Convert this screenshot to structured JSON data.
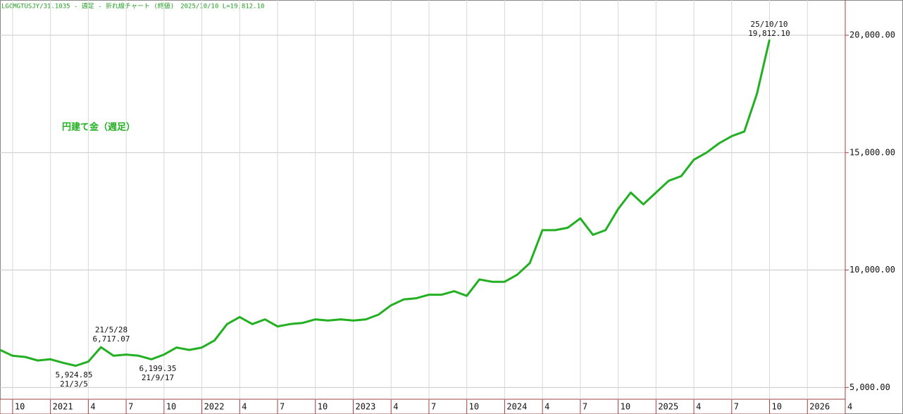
{
  "chart_data": {
    "type": "line",
    "header": "LGCMGTUSJY/31.1035 - 週足 - 折れ線チャート (終値)　2025/10/10 L=19,812.10",
    "legend_label": "円建て金（週足）",
    "color": "#22b022",
    "grid": true,
    "x": [
      "2020-09",
      "2020-10",
      "2020-11",
      "2020-12",
      "2021-01",
      "2021-02",
      "2021-03",
      "2021-04",
      "2021-05",
      "2021-06",
      "2021-07",
      "2021-08",
      "2021-09",
      "2021-10",
      "2021-11",
      "2021-12",
      "2022-01",
      "2022-02",
      "2022-03",
      "2022-04",
      "2022-05",
      "2022-06",
      "2022-07",
      "2022-08",
      "2022-09",
      "2022-10",
      "2022-11",
      "2022-12",
      "2023-01",
      "2023-02",
      "2023-03",
      "2023-04",
      "2023-05",
      "2023-06",
      "2023-07",
      "2023-08",
      "2023-09",
      "2023-10",
      "2023-11",
      "2023-12",
      "2024-01",
      "2024-02",
      "2024-03",
      "2024-04",
      "2024-05",
      "2024-06",
      "2024-07",
      "2024-08",
      "2024-09",
      "2024-10",
      "2024-11",
      "2024-12",
      "2025-01",
      "2025-02",
      "2025-03",
      "2025-04",
      "2025-05",
      "2025-06",
      "2025-07",
      "2025-08",
      "2025-09",
      "2025-10"
    ],
    "values": [
      6600,
      6350,
      6300,
      6150,
      6200,
      6050,
      5924.85,
      6100,
      6717.07,
      6350,
      6400,
      6350,
      6199.35,
      6400,
      6700,
      6600,
      6700,
      7000,
      7700,
      8000,
      7700,
      7900,
      7600,
      7700,
      7750,
      7900,
      7850,
      7900,
      7850,
      7900,
      8100,
      8500,
      8750,
      8800,
      8950,
      8950,
      9100,
      8900,
      9600,
      9500,
      9500,
      9800,
      10300,
      11700,
      11700,
      11800,
      12200,
      11500,
      11700,
      12600,
      13300,
      12800,
      13300,
      13800,
      14000,
      14700,
      15000,
      15400,
      15700,
      15900,
      17500,
      19812.1
    ],
    "xlim": [
      "2020-09",
      "2026-04"
    ],
    "xticks": [
      {
        "value": "2020-10",
        "label": "10"
      },
      {
        "value": "2021-01",
        "label": "2021"
      },
      {
        "value": "2021-04",
        "label": "4"
      },
      {
        "value": "2021-07",
        "label": "7"
      },
      {
        "value": "2021-10",
        "label": "10"
      },
      {
        "value": "2022-01",
        "label": "2022"
      },
      {
        "value": "2022-04",
        "label": "4"
      },
      {
        "value": "2022-07",
        "label": "7"
      },
      {
        "value": "2022-10",
        "label": "10"
      },
      {
        "value": "2023-01",
        "label": "2023"
      },
      {
        "value": "2023-04",
        "label": "4"
      },
      {
        "value": "2023-07",
        "label": "7"
      },
      {
        "value": "2023-10",
        "label": "10"
      },
      {
        "value": "2024-01",
        "label": "2024"
      },
      {
        "value": "2024-04",
        "label": "4"
      },
      {
        "value": "2024-07",
        "label": "7"
      },
      {
        "value": "2024-10",
        "label": "10"
      },
      {
        "value": "2025-01",
        "label": "2025"
      },
      {
        "value": "2025-04",
        "label": "4"
      },
      {
        "value": "2025-07",
        "label": "7"
      },
      {
        "value": "2025-10",
        "label": "10"
      },
      {
        "value": "2026-01",
        "label": "2026"
      },
      {
        "value": "2026-04",
        "label": "4"
      }
    ],
    "ylim": [
      4500,
      21500
    ],
    "yticks": [
      {
        "value": 5000,
        "label": "5,000.00"
      },
      {
        "value": 10000,
        "label": "10,000.00"
      },
      {
        "value": 15000,
        "label": "15,000.00"
      },
      {
        "value": 20000,
        "label": "20,000.00"
      }
    ],
    "annotations": [
      {
        "lines": [
          "21/5/28",
          "6,717.07"
        ]
      },
      {
        "lines": [
          "5,924.85",
          "21/3/5"
        ]
      },
      {
        "lines": [
          "6,199.35",
          "21/9/17"
        ]
      },
      {
        "lines": [
          "25/10/10",
          "19,812.10"
        ]
      }
    ]
  }
}
